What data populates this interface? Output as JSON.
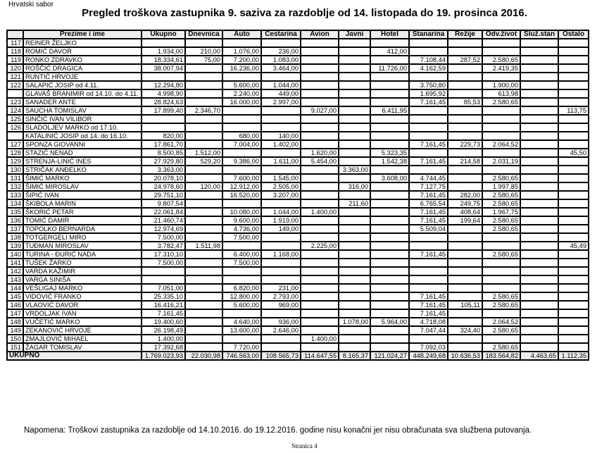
{
  "header_org": "Hrvatski sabor",
  "title": "Pregled troškova zastupnika  9. saziva za razdoblje od 14. listopada do 19. prosinca 2016.",
  "columns": [
    "",
    "Prezime i ime",
    "Ukupno",
    "Dnevnica",
    "Auto",
    "Cestarina",
    "Avion",
    "Javni",
    "Hotel",
    "Stanarina",
    "Režije",
    "Odv.život",
    "Služ.stan",
    "Ostalo"
  ],
  "rows": [
    [
      "117",
      "REINER ŽELJKO",
      "",
      "",
      "",
      "",
      "",
      "",
      "",
      "",
      "",
      "",
      "",
      ""
    ],
    [
      "118",
      "ROMIĆ DAVOR",
      "1.934,00",
      "210,00",
      "1.076,00",
      "236,00",
      "",
      "",
      "412,00",
      "",
      "",
      "",
      "",
      ""
    ],
    [
      "119",
      "RONKO ZDRAVKO",
      "18.334,61",
      "75,00",
      "7.200,00",
      "1.083,00",
      "",
      "",
      "",
      "7.108,44",
      "287,52",
      "2.580,65",
      "",
      ""
    ],
    [
      "120",
      "ROŠČIĆ DRAGICA",
      "38.007,94",
      "",
      "16.236,00",
      "3.464,00",
      "",
      "",
      "11.726,00",
      "4.162,59",
      "",
      "2.419,35",
      "",
      ""
    ],
    [
      "121",
      "RUNTIĆ HRVOJE",
      "",
      "",
      "",
      "",
      "",
      "",
      "",
      "",
      "",
      "",
      "",
      ""
    ],
    [
      "122",
      "SALAPIĆ JOSIP od 4.11.",
      "12.294,80",
      "",
      "5.600,00",
      "1.044,00",
      "",
      "",
      "",
      "3.750,80",
      "",
      "1.900,00",
      "",
      ""
    ],
    [
      "",
      "GLAVAŠ BRANIMIR od 14.10. do 4.11.",
      "4.998,90",
      "",
      "2.240,00",
      "449,00",
      "",
      "",
      "",
      "1.695,92",
      "",
      "613,98",
      "",
      ""
    ],
    [
      "123",
      "SANADER ANTE",
      "28.824,63",
      "",
      "16.000,00",
      "2.997,00",
      "",
      "",
      "",
      "7.161,45",
      "85,53",
      "2.580,65",
      "",
      ""
    ],
    [
      "124",
      "SAUCHA TOMISLAV",
      "17.899,40",
      "2.346,70",
      "",
      "",
      "9.027,00",
      "",
      "6.411,95",
      "",
      "",
      "",
      "",
      "113,75"
    ],
    [
      "125",
      "SINČIĆ IVAN VILIBOR",
      "",
      "",
      "",
      "",
      "",
      "",
      "",
      "",
      "",
      "",
      "",
      ""
    ],
    [
      "126",
      "SLADOLJEV MARKO od 17.10.",
      "",
      "",
      "",
      "",
      "",
      "",
      "",
      "",
      "",
      "",
      "",
      ""
    ],
    [
      "",
      "KATALINIĆ JOSIP od 14. do 16.10.",
      "820,00",
      "",
      "680,00",
      "140,00",
      "",
      "",
      "",
      "",
      "",
      "",
      "",
      ""
    ],
    [
      "127",
      "SPONZA GIOVANNI",
      "17.861,70",
      "",
      "7.004,00",
      "1.402,00",
      "",
      "",
      "",
      "7.161,45",
      "229,73",
      "2.064,52",
      "",
      ""
    ],
    [
      "128",
      "STAZIĆ NENAD",
      "8.500,85",
      "1.512,00",
      "",
      "",
      "1.620,00",
      "",
      "5.323,35",
      "",
      "",
      "",
      "",
      "45,50"
    ],
    [
      "129",
      "STRENJA-LINIĆ INES",
      "27.929,80",
      "529,20",
      "9.386,00",
      "1.611,00",
      "5.454,00",
      "",
      "1.542,38",
      "7.161,45",
      "214,58",
      "2.031,19",
      "",
      ""
    ],
    [
      "130",
      "STRIČAK ANĐELKO",
      "3.363,00",
      "",
      "",
      "",
      "",
      "3.363,00",
      "",
      "",
      "",
      "",
      "",
      ""
    ],
    [
      "131",
      "ŠIMIĆ MARKO",
      "20.078,10",
      "",
      "7.600,00",
      "1.545,00",
      "",
      "",
      "3.608,00",
      "4.744,45",
      "",
      "2.580,65",
      "",
      ""
    ],
    [
      "132",
      "ŠIMIĆ MIROSLAV",
      "24.978,60",
      "120,00",
      "12.912,00",
      "2.505,00",
      "",
      "316,00",
      "",
      "7.127,75",
      "",
      "1.997,85",
      "",
      ""
    ],
    [
      "133",
      "ŠIPIĆ IVAN",
      "29.751,10",
      "",
      "16.520,00",
      "3.207,00",
      "",
      "",
      "",
      "7.161,45",
      "282,00",
      "2.580,65",
      "",
      ""
    ],
    [
      "134",
      "ŠKIBOLA MARIN",
      "9.807,54",
      "",
      "",
      "",
      "",
      "211,60",
      "",
      "6.765,54",
      "249,75",
      "2.580,65",
      "",
      ""
    ],
    [
      "135",
      "ŠKORIĆ PETAR",
      "22.061,84",
      "",
      "10.080,00",
      "1.044,00",
      "1.400,00",
      "",
      "",
      "7.161,45",
      "408,64",
      "1.967,75",
      "",
      ""
    ],
    [
      "136",
      "TOMIĆ DAMIR",
      "21.460,74",
      "",
      "9.600,00",
      "1.919,00",
      "",
      "",
      "",
      "7.161,45",
      "199,64",
      "2.580,65",
      "",
      ""
    ],
    [
      "137",
      "TOPOLKO BERNARDA",
      "12.974,69",
      "",
      "4.736,00",
      "149,00",
      "",
      "",
      "",
      "5.509,04",
      "",
      "2.580,65",
      "",
      ""
    ],
    [
      "138",
      "TOTGERGELI MIRO",
      "7.500,00",
      "",
      "7.500,00",
      "",
      "",
      "",
      "",
      "",
      "",
      "",
      "",
      ""
    ],
    [
      "139",
      "TUĐMAN MIROSLAV",
      "3.782,47",
      "1.511,98",
      "",
      "",
      "2.225,00",
      "",
      "",
      "",
      "",
      "",
      "",
      "45,49"
    ],
    [
      "140",
      "TURINA - ĐURIĆ NADA",
      "17.310,10",
      "",
      "6.400,00",
      "1.168,00",
      "",
      "",
      "",
      "7.161,45",
      "",
      "2.580,65",
      "",
      ""
    ],
    [
      "141",
      "TUŠEK ŽARKO",
      "7.500,00",
      "",
      "7.500,00",
      "",
      "",
      "",
      "",
      "",
      "",
      "",
      "",
      ""
    ],
    [
      "142",
      "VARDA KAŽIMIR",
      "",
      "",
      "",
      "",
      "",
      "",
      "",
      "",
      "",
      "",
      "",
      ""
    ],
    [
      "143",
      "VARGA SINIŠA",
      "",
      "",
      "",
      "",
      "",
      "",
      "",
      "",
      "",
      "",
      "",
      ""
    ],
    [
      "144",
      "VEŠLIGAJ MARKO",
      "7.051,00",
      "",
      "6.820,00",
      "231,00",
      "",
      "",
      "",
      "",
      "",
      "",
      "",
      ""
    ],
    [
      "145",
      "VIDOVIĆ FRANKO",
      "25.335,10",
      "",
      "12.800,00",
      "2.793,00",
      "",
      "",
      "",
      "7.161,45",
      "",
      "2.580,65",
      "",
      ""
    ],
    [
      "146",
      "VLAOVIĆ DAVOR",
      "16.416,21",
      "",
      "5.600,00",
      "969,00",
      "",
      "",
      "",
      "7.161,45",
      "105,11",
      "2.580,65",
      "",
      ""
    ],
    [
      "147",
      "VRDOLJAK IVAN",
      "7.161,45",
      "",
      "",
      "",
      "",
      "",
      "",
      "7.161,45",
      "",
      "",
      "",
      ""
    ],
    [
      "148",
      "VUČETIĆ MARKO",
      "19.400,60",
      "",
      "4.640,00",
      "936,00",
      "",
      "1.078,00",
      "5.964,00",
      "4.718,08",
      "",
      "2.064,52",
      "",
      ""
    ],
    [
      "149",
      "ZEKANOVIĆ HRVOJE",
      "26.198,49",
      "",
      "13.600,00",
      "2.646,00",
      "",
      "",
      "",
      "7.047,44",
      "324,40",
      "2.580,65",
      "",
      ""
    ],
    [
      "150",
      "ZMAJLOVIĆ MIHAEL",
      "1.400,00",
      "",
      "",
      "",
      "1.400,00",
      "",
      "",
      "",
      "",
      "",
      "",
      ""
    ],
    [
      "151",
      "ŽAGAR TOMISLAV",
      "17.392,68",
      "",
      "7.720,00",
      "",
      "",
      "",
      "",
      "7.092,03",
      "",
      "2.580,65",
      "",
      ""
    ]
  ],
  "total": {
    "label": "UKUPNO",
    "values": [
      "1.769.023,93",
      "22.030,98",
      "746.563,00",
      "108.565,73",
      "114.647,55",
      "8.165,37",
      "121.024,27",
      "448.249,68",
      "10.636,53",
      "183.564,82",
      "4.463,65",
      "1.112,35"
    ]
  },
  "note": "Napomena: Troškovi zastupnika za razdoblje od 14.10.2016. do 19.12.2016. godine nisu konačni jer nisu obračunata sva službena putovanja.",
  "page_label": "Stranica 4"
}
